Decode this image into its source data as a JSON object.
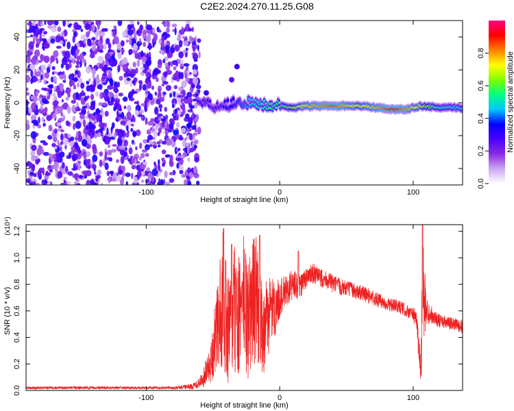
{
  "title": "C2E2.2024.270.11.25.G08",
  "chart_data": [
    {
      "type": "heatmap",
      "xlabel": "Height of straight line (km)",
      "ylabel": "Frequency (Hz)",
      "xlim": [
        -190,
        137
      ],
      "ylim": [
        -50,
        50
      ],
      "xticks": [
        -100,
        0,
        100
      ],
      "yticks": [
        -40,
        -20,
        0,
        20,
        40
      ],
      "colorbar": {
        "label": "Normalized spectral amplitude",
        "range": [
          0.0,
          1.0
        ],
        "ticks": [
          "0.0",
          "0.2",
          "0.4",
          "0.6",
          "0.8"
        ],
        "colors": [
          "#ffffff",
          "#c9a7f2",
          "#8a2be2",
          "#4b00ff",
          "#0000ff",
          "#00c8ff",
          "#00ff80",
          "#80ff00",
          "#ffff00",
          "#ff8000",
          "#ff0000",
          "#ff007f"
        ]
      },
      "noise_region_x": [
        -190,
        -60
      ],
      "ridge": {
        "x": [
          -60,
          -50,
          -40,
          -30,
          -20,
          -10,
          0,
          10,
          20,
          40,
          60,
          75,
          85,
          95,
          105,
          120,
          137
        ],
        "frequency": [
          2,
          -2,
          -1,
          1,
          -1,
          -1,
          -2,
          -3,
          -2,
          -2,
          -2,
          -3,
          -4,
          -4,
          -2,
          -3,
          -3
        ],
        "amplitude": [
          0.35,
          0.3,
          0.35,
          0.4,
          0.5,
          0.55,
          0.6,
          0.7,
          0.8,
          0.9,
          0.75,
          0.85,
          0.95,
          0.85,
          0.75,
          0.55,
          0.5
        ]
      }
    },
    {
      "type": "line",
      "xlabel": "Height of straight line (km)",
      "ylabel": "SNR (10 * v/v)",
      "yscale_label": "(x10⁴)",
      "xlim": [
        -190,
        137
      ],
      "ylim": [
        0,
        1.25
      ],
      "xticks": [
        -100,
        0,
        100
      ],
      "yticks": [
        "0.0",
        "0.2",
        "0.4",
        "0.6",
        "0.8",
        "1.0",
        "1.2"
      ],
      "color": "#ee2222",
      "envelope": {
        "x": [
          -190,
          -80,
          -65,
          -58,
          -52,
          -48,
          -44,
          -42,
          -40,
          -37,
          -34,
          -30,
          -27,
          -24,
          -21,
          -18,
          -15,
          -12,
          -9,
          -6,
          -3,
          0,
          5,
          10,
          15,
          20,
          25,
          30,
          35,
          40,
          50,
          60,
          70,
          80,
          90,
          95,
          100,
          103,
          105,
          106,
          107,
          108,
          110,
          115,
          120,
          130,
          137
        ],
        "y": [
          0.02,
          0.02,
          0.03,
          0.08,
          0.2,
          0.4,
          0.6,
          0.7,
          0.5,
          0.45,
          0.6,
          0.55,
          0.7,
          0.5,
          0.65,
          0.7,
          0.6,
          0.45,
          0.55,
          0.6,
          0.62,
          0.7,
          0.75,
          0.8,
          0.78,
          0.85,
          0.88,
          0.85,
          0.84,
          0.8,
          0.77,
          0.74,
          0.7,
          0.65,
          0.63,
          0.6,
          0.58,
          0.5,
          0.2,
          0.3,
          0.7,
          0.65,
          0.6,
          0.56,
          0.52,
          0.5,
          0.48
        ],
        "spread": [
          0.01,
          0.01,
          0.02,
          0.06,
          0.15,
          0.3,
          0.45,
          0.55,
          0.45,
          0.4,
          0.5,
          0.45,
          0.5,
          0.45,
          0.5,
          0.5,
          0.4,
          0.35,
          0.3,
          0.25,
          0.2,
          0.15,
          0.12,
          0.12,
          0.1,
          0.08,
          0.08,
          0.07,
          0.07,
          0.07,
          0.06,
          0.06,
          0.06,
          0.05,
          0.05,
          0.05,
          0.05,
          0.1,
          0.15,
          0.2,
          0.55,
          0.4,
          0.1,
          0.06,
          0.05,
          0.05,
          0.05
        ]
      },
      "peaks": [
        {
          "x": -42,
          "y": 1.22
        },
        {
          "x": -36,
          "y": 1.1
        },
        {
          "x": -28,
          "y": 0.82
        },
        {
          "x": -15,
          "y": 1.17
        },
        {
          "x": 14,
          "y": 1.05
        },
        {
          "x": 107,
          "y": 1.25
        }
      ]
    }
  ]
}
